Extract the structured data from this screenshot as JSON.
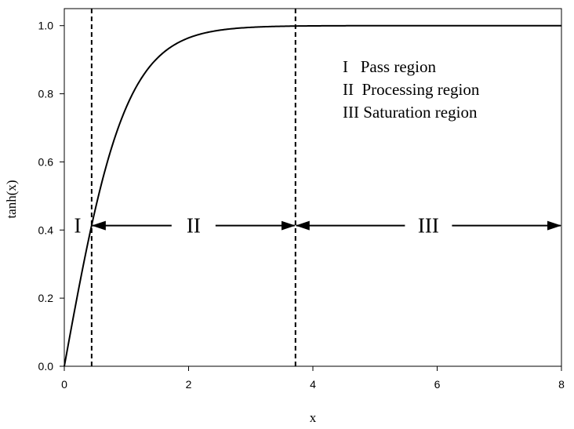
{
  "chart_data": {
    "type": "line",
    "xlabel": "x",
    "ylabel": "tanh(x)",
    "xlim": [
      0,
      8
    ],
    "ylim": [
      0,
      1.05
    ],
    "x_ticks": [
      0,
      2,
      4,
      6,
      8
    ],
    "x_tick_labels": [
      "0",
      "2",
      "4",
      "6",
      "8"
    ],
    "y_ticks": [
      0,
      0.2,
      0.4,
      0.6,
      0.8,
      1.0
    ],
    "y_tick_labels": [
      "0.0",
      "0.2",
      "0.4",
      "0.6",
      "0.8",
      "1.0"
    ],
    "grid": false,
    "series": [
      {
        "function": "tanh",
        "x_range": [
          0,
          8
        ]
      }
    ],
    "vlines": [
      0.44,
      3.72
    ],
    "arrow_y": 0.413,
    "regions": [
      {
        "label": "I",
        "x_range": [
          0,
          0.44
        ]
      },
      {
        "label": "II",
        "x_range": [
          0.44,
          3.72
        ]
      },
      {
        "label": "III",
        "x_range": [
          3.72,
          8
        ]
      }
    ],
    "legend": {
      "placement": "top-right",
      "lines": [
        "I   Pass region",
        "II  Processing region",
        "III Saturation region"
      ]
    }
  }
}
